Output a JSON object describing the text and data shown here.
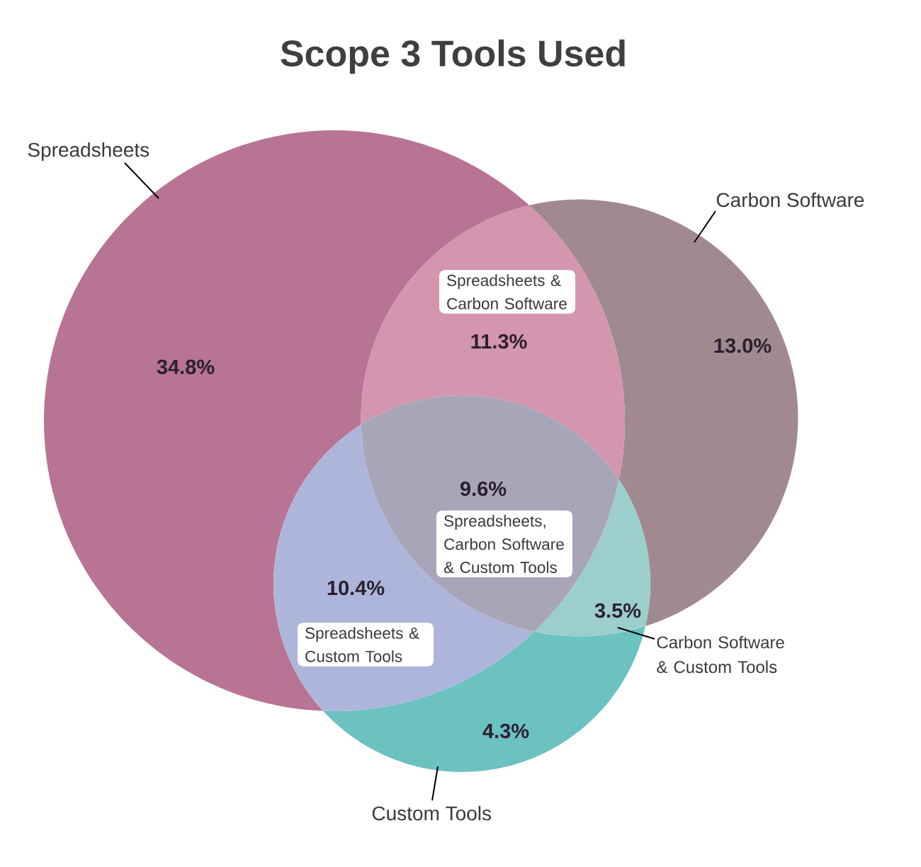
{
  "chart_data": {
    "type": "other",
    "title": "Scope 3 Tools Used",
    "categories": [
      "Spreadsheets",
      "Carbon Software",
      "Custom Tools",
      "Spreadsheets & Carbon Software",
      "Spreadsheets & Custom Tools",
      "Carbon Software & Custom Tools",
      "Spreadsheets, Carbon Software & Custom Tools"
    ],
    "values": [
      34.8,
      13.0,
      4.3,
      11.3,
      10.4,
      3.5,
      9.6
    ],
    "value_labels": [
      "34.8%",
      "13.0%",
      "4.3%",
      "11.3%",
      "10.4%",
      "3.5%",
      "9.6%"
    ],
    "colors": [
      "#b87494",
      "#a08a90",
      "#6cc1c1",
      "#d495ae",
      "#adb6da",
      "#9ccece",
      "#a8a5b8"
    ]
  }
}
